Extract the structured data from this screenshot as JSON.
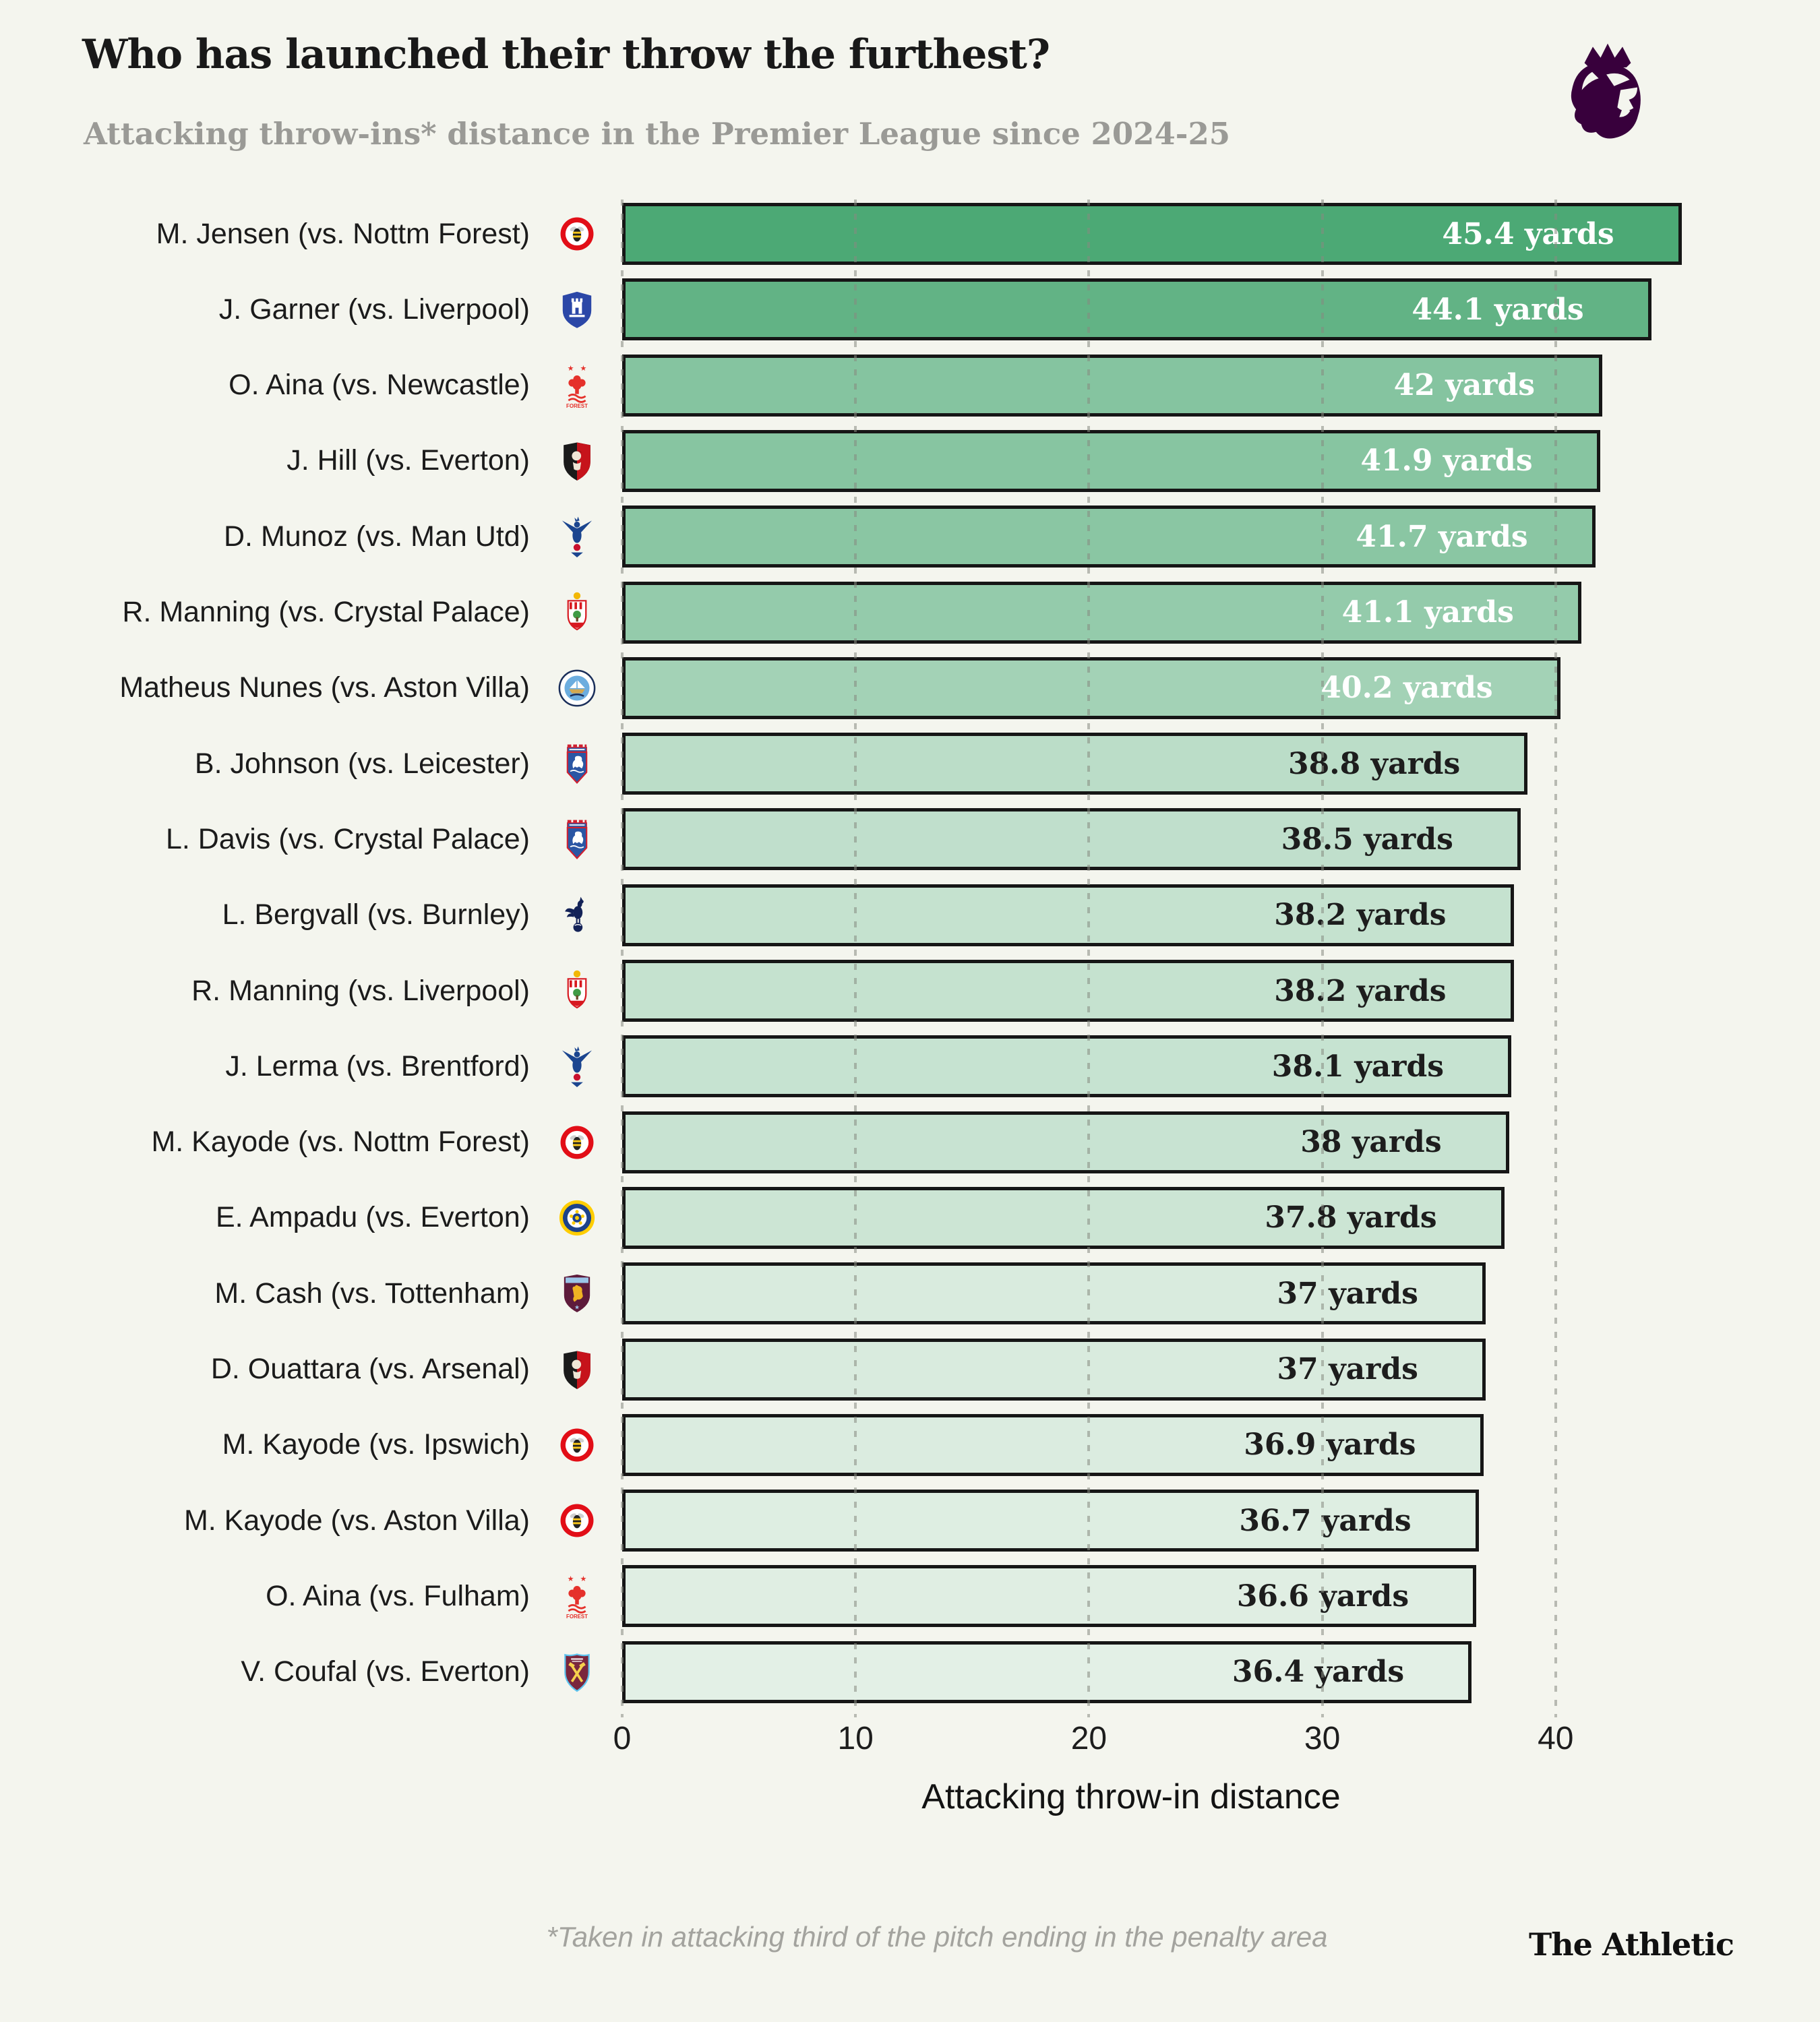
{
  "page": {
    "background": "#f4f5ee"
  },
  "header": {
    "title": "Who has launched their throw the furthest?",
    "subtitle": "Attacking throw-ins* distance in the Premier League since 2024-25",
    "logo": "premier-league-lion",
    "logo_color": "#38003c"
  },
  "chart_data": {
    "type": "bar",
    "orientation": "horizontal",
    "unit": "yards",
    "xlabel": "Attacking throw-in distance",
    "x_ticks": [
      0,
      10,
      20,
      30,
      40
    ],
    "xlim": [
      0,
      46
    ],
    "grid": "dotted-vertical",
    "color_scale": {
      "high": "#4CA975",
      "low": "#E3F0E6",
      "high_value": 45.4,
      "low_value": 36.4
    },
    "white_value_label_min": 40,
    "bar_border_color": "#161616",
    "dark_value_label_color": "#1d1d1d",
    "bars": [
      {
        "label": "M. Jensen (vs. Nottm Forest)",
        "club": "brentford",
        "value": 45.4,
        "value_label": "45.4 yards"
      },
      {
        "label": "J. Garner (vs. Liverpool)",
        "club": "everton",
        "value": 44.1,
        "value_label": "44.1 yards"
      },
      {
        "label": "O. Aina (vs. Newcastle)",
        "club": "nottingham-forest",
        "value": 42,
        "value_label": "42 yards"
      },
      {
        "label": "J. Hill (vs. Everton)",
        "club": "bournemouth",
        "value": 41.9,
        "value_label": "41.9 yards"
      },
      {
        "label": "D. Munoz (vs. Man Utd)",
        "club": "crystal-palace",
        "value": 41.7,
        "value_label": "41.7 yards"
      },
      {
        "label": "R. Manning (vs. Crystal Palace)",
        "club": "southampton",
        "value": 41.1,
        "value_label": "41.1 yards"
      },
      {
        "label": "Matheus Nunes (vs. Aston Villa)",
        "club": "man-city",
        "value": 40.2,
        "value_label": "40.2 yards"
      },
      {
        "label": "B. Johnson (vs. Leicester)",
        "club": "ipswich",
        "value": 38.8,
        "value_label": "38.8 yards"
      },
      {
        "label": "L. Davis (vs. Crystal Palace)",
        "club": "ipswich",
        "value": 38.5,
        "value_label": "38.5 yards"
      },
      {
        "label": "L. Bergvall (vs. Burnley)",
        "club": "tottenham",
        "value": 38.2,
        "value_label": "38.2 yards"
      },
      {
        "label": "R. Manning (vs. Liverpool)",
        "club": "southampton",
        "value": 38.2,
        "value_label": "38.2 yards"
      },
      {
        "label": "J. Lerma (vs. Brentford)",
        "club": "crystal-palace",
        "value": 38.1,
        "value_label": "38.1 yards"
      },
      {
        "label": "M. Kayode (vs. Nottm Forest)",
        "club": "brentford",
        "value": 38,
        "value_label": "38 yards"
      },
      {
        "label": "E. Ampadu (vs. Everton)",
        "club": "leeds",
        "value": 37.8,
        "value_label": "37.8 yards"
      },
      {
        "label": "M. Cash (vs. Tottenham)",
        "club": "aston-villa",
        "value": 37,
        "value_label": "37 yards"
      },
      {
        "label": "D. Ouattara (vs. Arsenal)",
        "club": "bournemouth",
        "value": 37,
        "value_label": "37 yards"
      },
      {
        "label": "M. Kayode (vs. Ipswich)",
        "club": "brentford",
        "value": 36.9,
        "value_label": "36.9 yards"
      },
      {
        "label": "M. Kayode (vs. Aston Villa)",
        "club": "brentford",
        "value": 36.7,
        "value_label": "36.7 yards"
      },
      {
        "label": "O. Aina (vs. Fulham)",
        "club": "nottingham-forest",
        "value": 36.6,
        "value_label": "36.6 yards"
      },
      {
        "label": "V. Coufal (vs. Everton)",
        "club": "west-ham",
        "value": 36.4,
        "value_label": "36.4 yards"
      }
    ]
  },
  "footer": {
    "footnote": "*Taken in attacking third of the pitch ending in the penalty area",
    "brand": "The Athletic"
  }
}
